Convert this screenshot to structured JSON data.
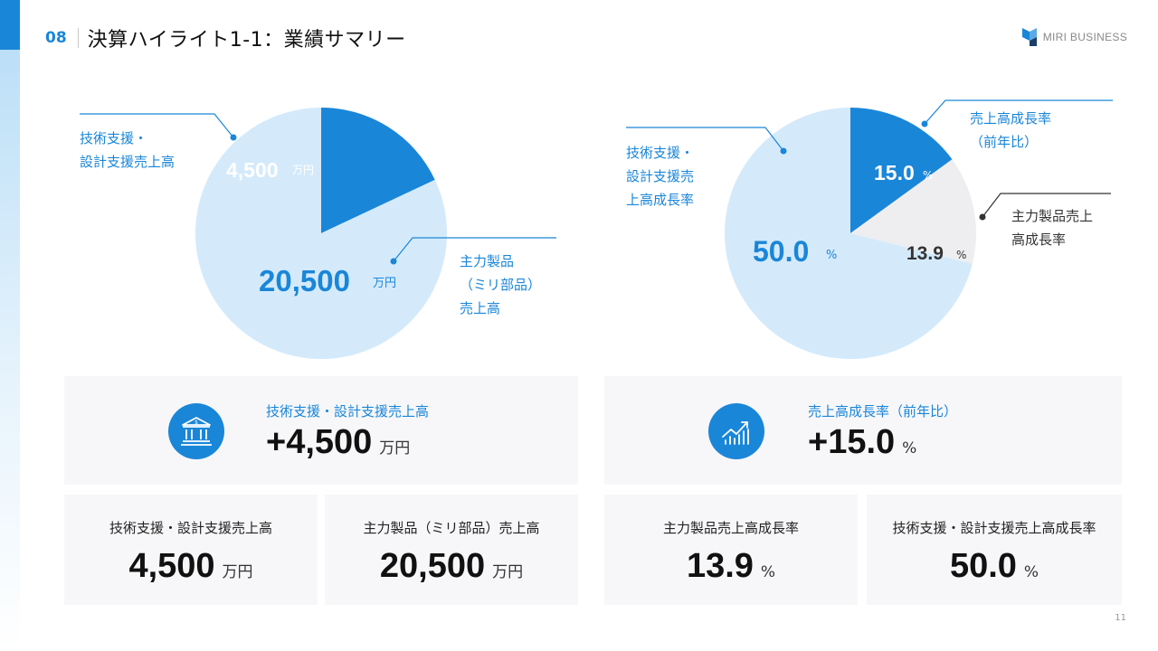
{
  "header": {
    "slide_number": "08",
    "title": "決算ハイライト1-1：業績サマリー"
  },
  "brand": {
    "name": "MIRI BUSINESS",
    "logo_icon": "miri-logo-icon"
  },
  "colors": {
    "accent": "#1a86d8",
    "light_blue": "#d4eafb",
    "light_gray": "#eeeef0"
  },
  "chart_data": [
    {
      "type": "pie",
      "title": "",
      "slices": [
        {
          "label": "技術支援・設計支援売上高",
          "value": 4500,
          "display": "4,500",
          "unit": "万円",
          "color": "#1a86d8"
        },
        {
          "label": "主力製品（ミリ部品）売上高",
          "value": 20500,
          "display": "20,500",
          "unit": "万円",
          "color": "#d4eafb"
        }
      ],
      "annotations": [
        "技術支援・\n設計支援売上高",
        "主力製品\n（ミリ部品）\n売上高"
      ]
    },
    {
      "type": "pie",
      "title": "",
      "slices": [
        {
          "label": "売上高成長率（前年比）",
          "value": 15.0,
          "display": "15.0",
          "unit": "%",
          "color": "#1a86d8"
        },
        {
          "label": "主力製品売上高成長率",
          "value": 13.9,
          "display": "13.9",
          "unit": "%",
          "color": "#eeeef0"
        },
        {
          "label": "技術支援・設計支援売上高成長率",
          "value": 50.0,
          "display": "50.0",
          "unit": "%",
          "color": "#d4eafb"
        }
      ],
      "annotations": [
        "売上高成長率\n（前年比）",
        "主力製品売上\n高成長率",
        "技術支援・\n設計支援売\n上高成長率"
      ]
    }
  ],
  "cards": {
    "highlight_left": {
      "icon": "bank-icon",
      "label": "技術支援・設計支援売上高",
      "value": "+4,500",
      "unit": "万円"
    },
    "highlight_right": {
      "icon": "growth-chart-icon",
      "label": "売上高成長率（前年比）",
      "value": "+15.0",
      "unit": "%"
    },
    "small": [
      {
        "label": "技術支援・設計支援売上高",
        "value": "4,500",
        "unit": "万円"
      },
      {
        "label": "主力製品（ミリ部品）売上高",
        "value": "20,500",
        "unit": "万円"
      },
      {
        "label": "主力製品売上高成長率",
        "value": "13.9",
        "unit": "%"
      },
      {
        "label": "技術支援・設計支援売上高成長率",
        "value": "50.0",
        "unit": "%"
      }
    ]
  },
  "page_number": "11"
}
